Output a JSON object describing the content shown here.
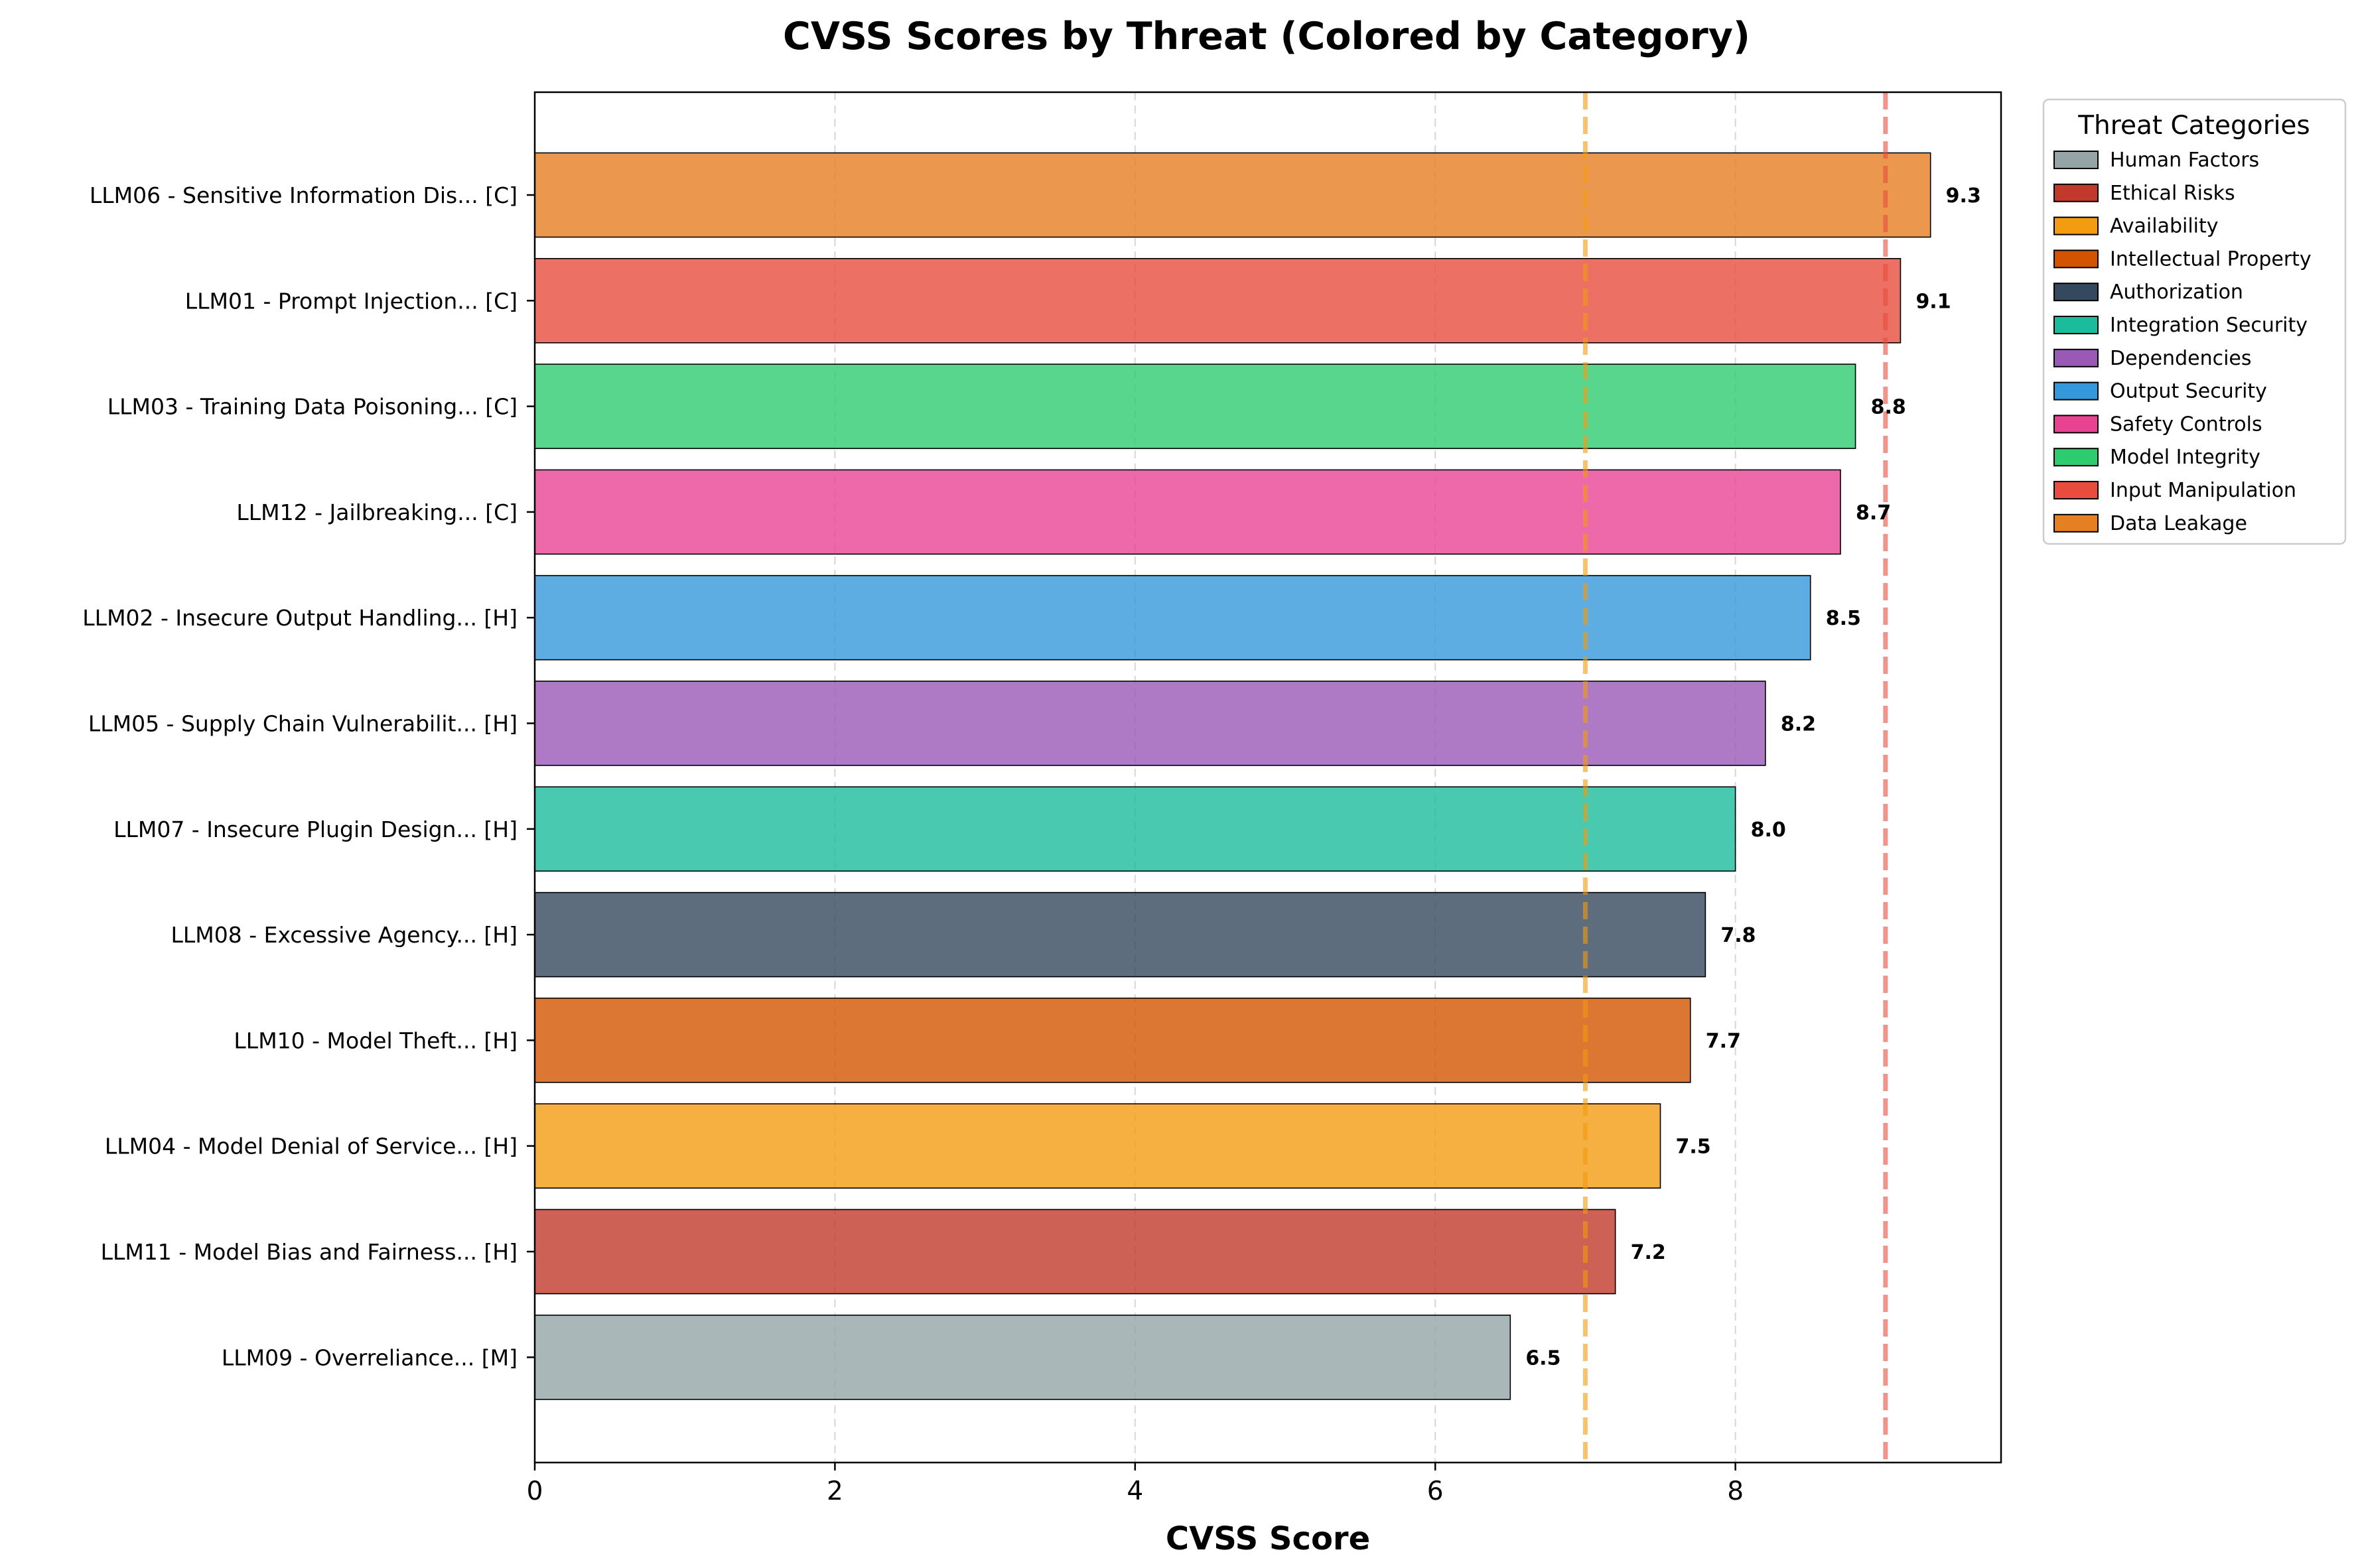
{
  "chart_data": {
    "type": "bar",
    "orientation": "horizontal",
    "title": "CVSS Scores by Threat (Colored by Category)",
    "xlabel": "CVSS Score",
    "ylabel": "",
    "xlim": [
      0,
      9.77
    ],
    "xticks": [
      0,
      2,
      4,
      6,
      8
    ],
    "grid": "x-dashed",
    "categories": [
      "LLM06 - Sensitive Information Dis... [C]",
      "LLM01 - Prompt Injection... [C]",
      "LLM03 - Training Data Poisoning... [C]",
      "LLM12 - Jailbreaking... [C]",
      "LLM02 - Insecure Output Handling... [H]",
      "LLM05 - Supply Chain Vulnerabilit... [H]",
      "LLM07 - Insecure Plugin Design... [H]",
      "LLM08 - Excessive Agency... [H]",
      "LLM10 - Model Theft... [H]",
      "LLM04 - Model Denial of Service... [H]",
      "LLM11 - Model Bias and Fairness... [H]",
      "LLM09 - Overreliance... [M]"
    ],
    "values": [
      9.3,
      9.1,
      8.8,
      8.7,
      8.5,
      8.2,
      8.0,
      7.8,
      7.7,
      7.5,
      7.2,
      6.5
    ],
    "value_labels": [
      "9.3",
      "9.1",
      "8.8",
      "8.7",
      "8.5",
      "8.2",
      "8.0",
      "7.8",
      "7.7",
      "7.5",
      "7.2",
      "6.5"
    ],
    "bar_colors": [
      "#e67e22",
      "#e74c3c",
      "#2ecc71",
      "#e84393",
      "#3498db",
      "#9b59b6",
      "#1abc9c",
      "#34495e",
      "#d35400",
      "#f39c12",
      "#c0392b",
      "#95a5a6"
    ],
    "bar_opacity": 0.8,
    "reference_lines": [
      {
        "x": 7.0,
        "color": "#f39c12"
      },
      {
        "x": 9.0,
        "color": "#e74c3c"
      }
    ],
    "legend": {
      "title": "Threat Categories",
      "placement": "outside-top-right",
      "entries": [
        {
          "label": "Human Factors",
          "color": "#95a5a6"
        },
        {
          "label": "Ethical Risks",
          "color": "#c0392b"
        },
        {
          "label": "Availability",
          "color": "#f39c12"
        },
        {
          "label": "Intellectual Property",
          "color": "#d35400"
        },
        {
          "label": "Authorization",
          "color": "#34495e"
        },
        {
          "label": "Integration Security",
          "color": "#1abc9c"
        },
        {
          "label": "Dependencies",
          "color": "#9b59b6"
        },
        {
          "label": "Output Security",
          "color": "#3498db"
        },
        {
          "label": "Safety Controls",
          "color": "#e84393"
        },
        {
          "label": "Model Integrity",
          "color": "#2ecc71"
        },
        {
          "label": "Input Manipulation",
          "color": "#e74c3c"
        },
        {
          "label": "Data Leakage",
          "color": "#e67e22"
        }
      ]
    }
  }
}
